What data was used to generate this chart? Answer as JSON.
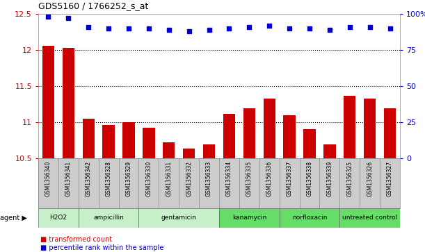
{
  "title": "GDS5160 / 1766252_s_at",
  "samples": [
    "GSM1356340",
    "GSM1356341",
    "GSM1356342",
    "GSM1356328",
    "GSM1356329",
    "GSM1356330",
    "GSM1356331",
    "GSM1356332",
    "GSM1356333",
    "GSM1356334",
    "GSM1356335",
    "GSM1356336",
    "GSM1356337",
    "GSM1356338",
    "GSM1356339",
    "GSM1356325",
    "GSM1356326",
    "GSM1356327"
  ],
  "transformed_count": [
    12.06,
    12.03,
    11.05,
    10.96,
    11.0,
    10.92,
    10.72,
    10.63,
    10.69,
    11.12,
    11.19,
    11.33,
    11.1,
    10.9,
    10.69,
    11.37,
    11.33,
    11.19
  ],
  "percentile_rank_vals": [
    98,
    97,
    91,
    90,
    90,
    90,
    89,
    88,
    89,
    90,
    91,
    92,
    90,
    90,
    89,
    91,
    91,
    90
  ],
  "agents": [
    {
      "label": "H2O2",
      "start": 0,
      "end": 2,
      "color": "#c8f0c8"
    },
    {
      "label": "ampicillin",
      "start": 2,
      "end": 5,
      "color": "#c8f0c8"
    },
    {
      "label": "gentamicin",
      "start": 5,
      "end": 9,
      "color": "#c8f0c8"
    },
    {
      "label": "kanamycin",
      "start": 9,
      "end": 12,
      "color": "#66dd66"
    },
    {
      "label": "norfloxacin",
      "start": 12,
      "end": 15,
      "color": "#66dd66"
    },
    {
      "label": "untreated control",
      "start": 15,
      "end": 18,
      "color": "#66dd66"
    }
  ],
  "ylim_left": [
    10.5,
    12.5
  ],
  "ylim_right": [
    0,
    100
  ],
  "bar_color": "#cc0000",
  "dot_color": "#0000cc",
  "left_tick_color": "#cc0000",
  "right_tick_color": "#0000cc",
  "bg_color": "#ffffff",
  "sample_bg": "#cccccc",
  "legend_bar_label": "transformed count",
  "legend_dot_label": "percentile rank within the sample",
  "agent_label": "agent"
}
